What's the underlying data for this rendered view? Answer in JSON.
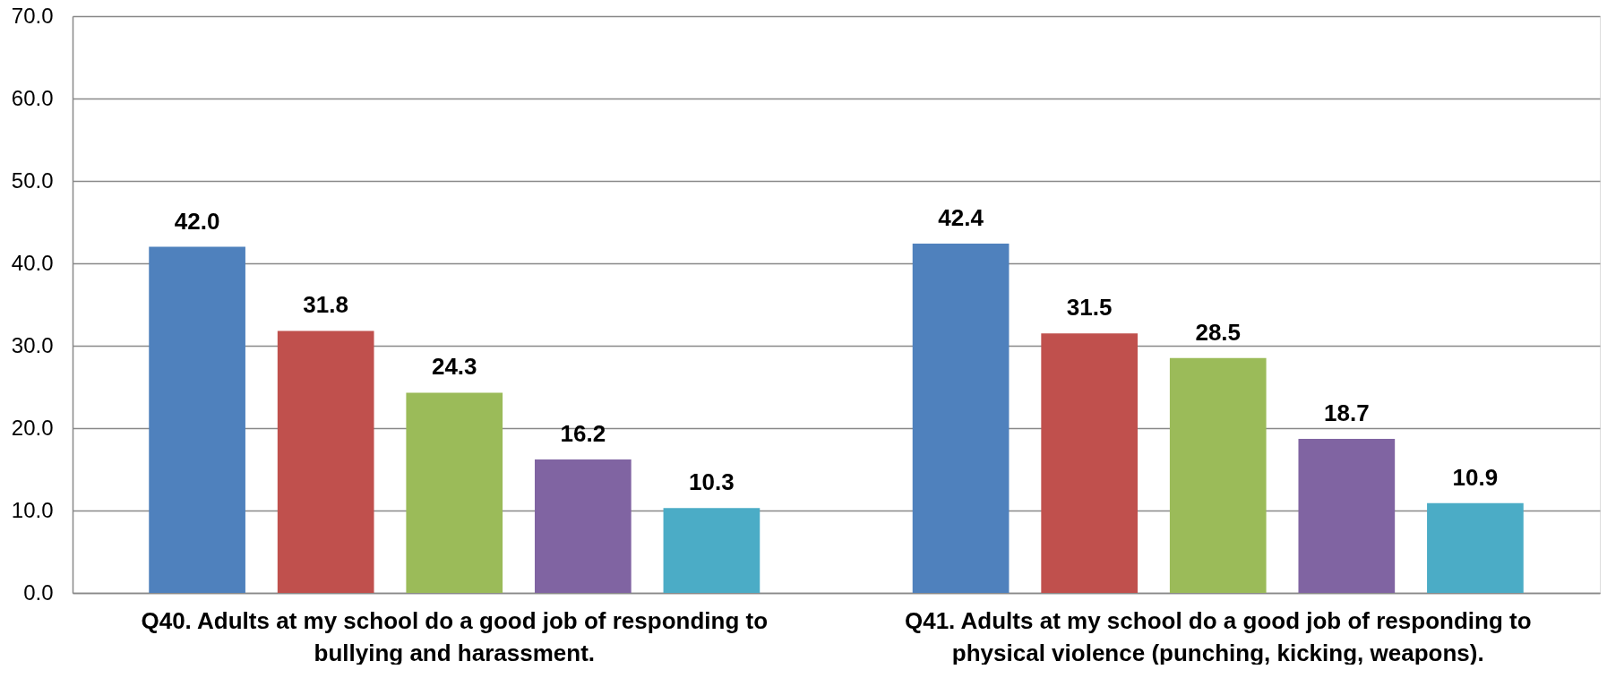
{
  "chart_data": {
    "type": "bar",
    "categories": [
      "Q40. Adults at my school do a good job of responding to bullying and harassment.",
      "Q41. Adults at my school do a good job of responding to physical violence (punching, kicking, weapons)."
    ],
    "series": [
      {
        "color": "#4f81bd",
        "values": [
          42.0,
          42.4
        ],
        "value_labels": [
          "42.0",
          "42.4"
        ]
      },
      {
        "color": "#c0504d",
        "values": [
          31.8,
          31.5
        ],
        "value_labels": [
          "31.8",
          "31.5"
        ]
      },
      {
        "color": "#9bbb59",
        "values": [
          24.3,
          28.5
        ],
        "value_labels": [
          "24.3",
          "28.5"
        ]
      },
      {
        "color": "#8064a2",
        "values": [
          16.2,
          18.7
        ],
        "value_labels": [
          "16.2",
          "18.7"
        ]
      },
      {
        "color": "#4bacc6",
        "values": [
          10.3,
          10.9
        ],
        "value_labels": [
          "10.3",
          "10.9"
        ]
      }
    ],
    "ylim": [
      0,
      70
    ],
    "yticks": [
      {
        "value": 0,
        "label": "0.0"
      },
      {
        "value": 10,
        "label": "10.0"
      },
      {
        "value": 20,
        "label": "20.0"
      },
      {
        "value": 30,
        "label": "30.0"
      },
      {
        "value": 40,
        "label": "40.0"
      },
      {
        "value": 50,
        "label": "50.0"
      },
      {
        "value": 60,
        "label": "60.0"
      },
      {
        "value": 70,
        "label": "70.0"
      }
    ],
    "grid": "y",
    "legend": false
  }
}
